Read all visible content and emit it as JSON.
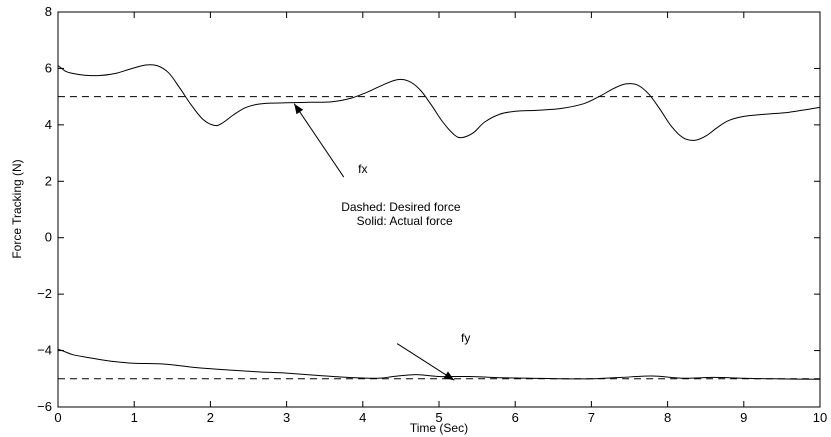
{
  "chart_data": {
    "type": "line",
    "xlabel": "Time (Sec)",
    "ylabel": "Force Tracking (N)",
    "xlim": [
      0,
      10
    ],
    "ylim": [
      -6,
      8
    ],
    "xticks": [
      0,
      1,
      2,
      3,
      4,
      5,
      6,
      7,
      8,
      9,
      10
    ],
    "yticks": [
      -6,
      -4,
      -2,
      0,
      2,
      4,
      6,
      8
    ],
    "grid": false,
    "series": [
      {
        "style": "dashed",
        "role": "desired-fx",
        "x": [
          0,
          10
        ],
        "y": [
          5.0,
          5.0
        ]
      },
      {
        "style": "dashed",
        "role": "desired-fy",
        "x": [
          0,
          10
        ],
        "y": [
          -5.0,
          -5.0
        ]
      },
      {
        "style": "solid",
        "role": "actual-fx",
        "x": [
          0,
          0.1,
          0.2,
          0.35,
          0.55,
          0.75,
          0.95,
          1.15,
          1.3,
          1.45,
          1.6,
          1.75,
          1.9,
          2.05,
          2.15,
          2.3,
          2.45,
          2.6,
          2.8,
          3.0,
          3.3,
          3.6,
          3.85,
          4.05,
          4.25,
          4.45,
          4.6,
          4.75,
          4.9,
          5.05,
          5.2,
          5.3,
          5.45,
          5.6,
          5.8,
          6.0,
          6.3,
          6.6,
          6.9,
          7.1,
          7.3,
          7.45,
          7.6,
          7.75,
          7.9,
          8.05,
          8.2,
          8.35,
          8.5,
          8.65,
          8.8,
          9.0,
          9.3,
          9.6,
          10.0
        ],
        "y": [
          6.1,
          5.9,
          5.82,
          5.76,
          5.75,
          5.82,
          5.98,
          6.12,
          6.1,
          5.85,
          5.3,
          4.7,
          4.2,
          3.98,
          4.05,
          4.35,
          4.6,
          4.72,
          4.77,
          4.78,
          4.8,
          4.82,
          4.95,
          5.15,
          5.4,
          5.6,
          5.55,
          5.25,
          4.7,
          4.1,
          3.65,
          3.55,
          3.72,
          4.1,
          4.38,
          4.48,
          4.52,
          4.58,
          4.75,
          5.0,
          5.3,
          5.45,
          5.42,
          5.1,
          4.55,
          3.95,
          3.55,
          3.45,
          3.6,
          3.9,
          4.15,
          4.3,
          4.38,
          4.45,
          4.62
        ]
      },
      {
        "style": "solid",
        "role": "actual-fy",
        "x": [
          0,
          0.1,
          0.2,
          0.4,
          0.7,
          1.0,
          1.4,
          1.8,
          2.2,
          2.6,
          3.0,
          3.4,
          3.8,
          4.2,
          4.4,
          4.7,
          5.0,
          5.4,
          5.8,
          6.2,
          6.6,
          7.0,
          7.4,
          7.8,
          8.2,
          8.6,
          9.0,
          9.4,
          10.0
        ],
        "y": [
          -3.95,
          -4.05,
          -4.15,
          -4.25,
          -4.38,
          -4.45,
          -4.48,
          -4.6,
          -4.68,
          -4.75,
          -4.8,
          -4.88,
          -4.95,
          -4.98,
          -4.92,
          -4.85,
          -4.92,
          -4.92,
          -4.96,
          -4.98,
          -5.0,
          -5.0,
          -4.95,
          -4.9,
          -4.98,
          -4.95,
          -4.98,
          -5.0,
          -5.02
        ]
      }
    ],
    "annotations": [
      {
        "text": "fx",
        "x": 4.0,
        "y": 2.3
      },
      {
        "text": "fy",
        "x": 5.35,
        "y": -3.7
      },
      {
        "text": "Dashed: Desired force",
        "x": 4.5,
        "y": 0.95
      },
      {
        "text": "Solid: Actual force",
        "x": 4.55,
        "y": 0.45
      }
    ],
    "arrows": [
      {
        "from": [
          3.75,
          2.15
        ],
        "to": [
          3.1,
          4.75
        ]
      },
      {
        "from": [
          4.45,
          -3.75
        ],
        "to": [
          5.2,
          -5.05
        ]
      }
    ]
  }
}
